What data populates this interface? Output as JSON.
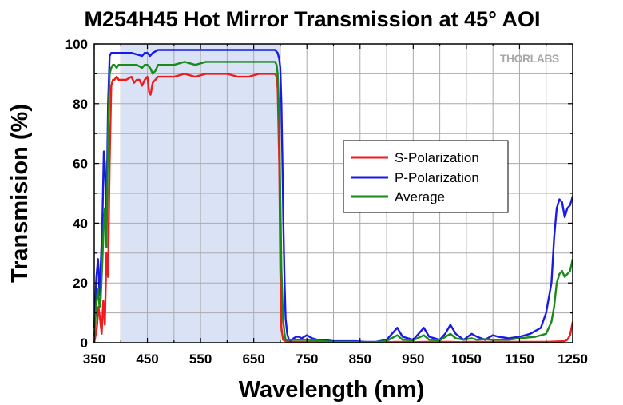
{
  "brand": "THORLABS",
  "chart_data": {
    "type": "line",
    "title": "M254H45 Hot Mirror Transmission at 45° AOI",
    "xlabel": "Wavelength (nm)",
    "ylabel": "Transmision (%)",
    "xlim": [
      350,
      1250
    ],
    "ylim": [
      0,
      100
    ],
    "xticks": [
      350,
      450,
      550,
      650,
      750,
      850,
      950,
      1050,
      1150,
      1250
    ],
    "xtick_labels": [
      "350",
      "450",
      "550",
      "650",
      "750",
      "850",
      "950",
      "1050",
      "1150",
      "1250"
    ],
    "yticks": [
      0,
      20,
      40,
      60,
      80,
      100
    ],
    "ytick_labels": [
      "0",
      "20",
      "40",
      "60",
      "80",
      "100"
    ],
    "grid": true,
    "legend_position": "center-right",
    "shaded_region": {
      "x": [
        400,
        700
      ],
      "color": "#d9e3f5"
    },
    "series": [
      {
        "name": "S-Polarization",
        "color": "#ee1c1c",
        "x": [
          350,
          355,
          358,
          361,
          364,
          367,
          370,
          373,
          376,
          379,
          382,
          385,
          388,
          392,
          396,
          400,
          410,
          420,
          425,
          430,
          435,
          440,
          445,
          450,
          453,
          456,
          460,
          465,
          470,
          480,
          500,
          520,
          540,
          560,
          580,
          600,
          620,
          640,
          660,
          680,
          690,
          693,
          695,
          698,
          700,
          702,
          705,
          710,
          720,
          730,
          740,
          760,
          780,
          800,
          830,
          850,
          870,
          900,
          920,
          950,
          970,
          1000,
          1020,
          1040,
          1050,
          1070,
          1100,
          1120,
          1150,
          1180,
          1200,
          1220,
          1235,
          1240,
          1245,
          1250
        ],
        "y": [
          0,
          5,
          12,
          8,
          3,
          14,
          6,
          30,
          22,
          60,
          86,
          88,
          88,
          89,
          88,
          88,
          88,
          89,
          87,
          88,
          88,
          86,
          88,
          89,
          84,
          83,
          87,
          88,
          89,
          89,
          89,
          90,
          89,
          90,
          90,
          90,
          89,
          89,
          90,
          90,
          90,
          89,
          85,
          60,
          25,
          5,
          1,
          0.5,
          0.3,
          0.3,
          0.3,
          0.2,
          0.2,
          0.2,
          0.2,
          0.1,
          0.1,
          0.2,
          0.3,
          0.2,
          0.3,
          0.3,
          0.3,
          0.2,
          0.3,
          0.3,
          0.3,
          0.3,
          0.3,
          0.3,
          0.3,
          0.4,
          0.5,
          1,
          2.5,
          7
        ]
      },
      {
        "name": "P-Polarization",
        "color": "#1a1ae6",
        "x": [
          350,
          354,
          357,
          360,
          362,
          365,
          368,
          370,
          373,
          376,
          379,
          382,
          385,
          388,
          392,
          396,
          400,
          420,
          440,
          445,
          450,
          455,
          460,
          470,
          480,
          500,
          520,
          540,
          560,
          580,
          600,
          620,
          640,
          660,
          680,
          690,
          695,
          698,
          700,
          702,
          704,
          706,
          708,
          710,
          713,
          716,
          720,
          725,
          730,
          735,
          740,
          745,
          750,
          760,
          770,
          780,
          800,
          820,
          830,
          840,
          860,
          880,
          900,
          910,
          920,
          930,
          950,
          960,
          970,
          980,
          1000,
          1010,
          1020,
          1030,
          1045,
          1060,
          1070,
          1085,
          1100,
          1110,
          1130,
          1150,
          1170,
          1190,
          1200,
          1210,
          1215,
          1220,
          1225,
          1230,
          1235,
          1240,
          1245,
          1250
        ],
        "y": [
          5,
          22,
          28,
          16,
          25,
          38,
          64,
          60,
          42,
          80,
          96,
          97,
          97,
          97,
          97,
          97,
          97,
          97,
          96,
          97,
          97,
          96,
          97,
          98,
          98,
          98,
          98,
          98,
          98,
          98,
          98,
          98,
          98,
          98,
          98,
          98,
          97,
          95,
          92,
          80,
          60,
          38,
          20,
          8,
          3,
          1,
          0.5,
          1.5,
          2,
          2,
          1.5,
          2,
          2.5,
          1.5,
          1,
          1,
          0.5,
          0.5,
          0.5,
          0.5,
          0.3,
          0.3,
          1,
          3,
          5,
          2,
          1,
          3,
          5,
          2,
          1,
          3,
          6,
          3,
          1,
          3,
          2,
          1,
          2.5,
          2,
          1.5,
          2,
          3,
          5,
          10,
          20,
          35,
          45,
          48,
          47,
          42,
          45,
          46,
          49
        ]
      },
      {
        "name": "Average",
        "color": "#1a8a1a",
        "x": [
          350,
          354,
          357,
          360,
          362,
          365,
          368,
          370,
          373,
          376,
          379,
          382,
          385,
          388,
          392,
          396,
          400,
          410,
          420,
          430,
          440,
          445,
          450,
          455,
          460,
          465,
          470,
          480,
          500,
          520,
          540,
          560,
          580,
          600,
          620,
          640,
          660,
          680,
          690,
          693,
          695,
          698,
          700,
          702,
          705,
          708,
          710,
          715,
          720,
          725,
          730,
          740,
          750,
          760,
          780,
          800,
          830,
          850,
          880,
          900,
          920,
          930,
          950,
          970,
          980,
          1000,
          1020,
          1030,
          1045,
          1060,
          1070,
          1085,
          1100,
          1130,
          1150,
          1180,
          1200,
          1210,
          1215,
          1220,
          1225,
          1230,
          1235,
          1240,
          1245,
          1250
        ],
        "y": [
          2,
          13,
          18,
          12,
          14,
          26,
          40,
          45,
          32,
          70,
          90,
          92,
          93,
          93,
          92,
          93,
          93,
          93,
          93,
          93,
          92,
          93,
          93,
          92,
          90,
          91,
          93,
          93,
          93,
          94,
          93,
          94,
          94,
          94,
          94,
          94,
          94,
          94,
          94,
          93,
          90,
          75,
          50,
          25,
          8,
          3,
          1,
          1,
          1,
          1,
          1,
          1,
          1,
          0.8,
          0.5,
          0.3,
          0.3,
          0.2,
          0.2,
          0.6,
          2.5,
          1,
          0.8,
          2.5,
          1,
          0.8,
          3,
          1.5,
          1,
          1.5,
          1,
          1.2,
          1,
          1,
          1.5,
          2,
          3,
          7,
          12,
          20,
          23,
          24,
          22,
          23,
          24,
          28
        ]
      }
    ]
  }
}
